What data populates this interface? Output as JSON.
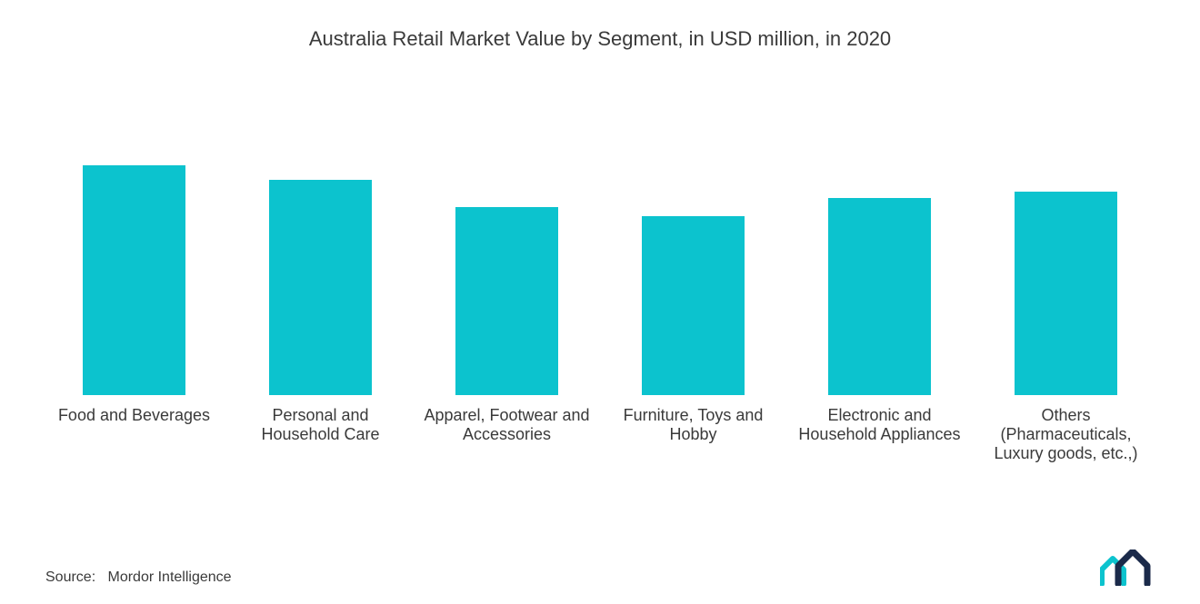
{
  "chart": {
    "type": "bar",
    "title": "Australia Retail Market Value by Segment, in USD million, in 2020",
    "title_fontsize": 22,
    "title_color": "#3a3a3a",
    "background_color": "#ffffff",
    "bar_color": "#0cc3ce",
    "label_color": "#3a3a3a",
    "label_fontsize": 18,
    "chart_max_value": 100,
    "bars": [
      {
        "label": "Food and Beverages",
        "value": 77
      },
      {
        "label": "Personal and Household Care",
        "value": 72
      },
      {
        "label": "Apparel, Footwear and Accessories",
        "value": 63
      },
      {
        "label": "Furniture, Toys and Hobby",
        "value": 60
      },
      {
        "label": "Electronic and Household Appliances",
        "value": 66
      },
      {
        "label": "Others (Pharmaceuticals, Luxury goods, etc.,)",
        "value": 68
      }
    ]
  },
  "source": {
    "label": "Source:",
    "value": "Mordor Intelligence",
    "fontsize": 16,
    "color": "#3a3a3a"
  },
  "logo": {
    "primary_color": "#0cc3ce",
    "secondary_color": "#1b2a4a"
  }
}
